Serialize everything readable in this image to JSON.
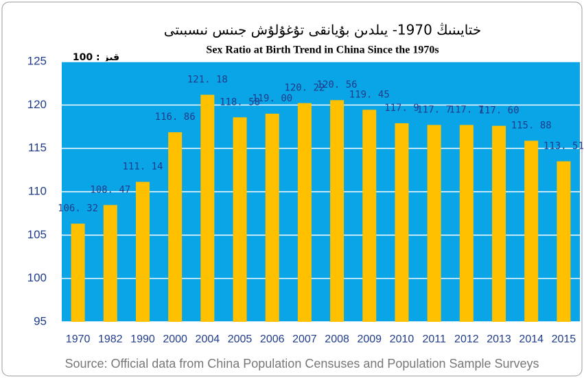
{
  "chart_data": {
    "type": "bar",
    "title": "ختايىنىڭ 1970- يىلدىن بۇيانقى تۇغۇلۇش جىنس نىسبىتى",
    "subtitle": "Sex Ratio at Birth Trend in China Since the 1970s",
    "annotation": "قىز : 100",
    "source": "Source: Official data from China Population Censuses and Population Sample Surveys",
    "categories": [
      "1970",
      "1982",
      "1990",
      "2000",
      "2004",
      "2005",
      "2006",
      "2007",
      "2008",
      "2009",
      "2010",
      "2011",
      "2012",
      "2013",
      "2014",
      "2015"
    ],
    "values": [
      106.32,
      108.47,
      111.14,
      116.86,
      121.18,
      118.58,
      119.0,
      120.22,
      120.56,
      119.45,
      117.9,
      117.7,
      117.7,
      117.6,
      115.88,
      113.51
    ],
    "value_labels": [
      "106. 32",
      "108. 47",
      "111. 14",
      "116. 86",
      "121. 18",
      "118. 58",
      "119. 00",
      "120. 22",
      "120. 56",
      "119. 45",
      "117. 9",
      "117. 7",
      "117. 7",
      "117. 60",
      "115. 88",
      "113. 51"
    ],
    "color": "#ffc000",
    "background": "#0aa5e6",
    "ylim": [
      95,
      125
    ],
    "yticks": [
      95,
      100,
      105,
      110,
      115,
      120,
      125
    ],
    "grid": true
  }
}
